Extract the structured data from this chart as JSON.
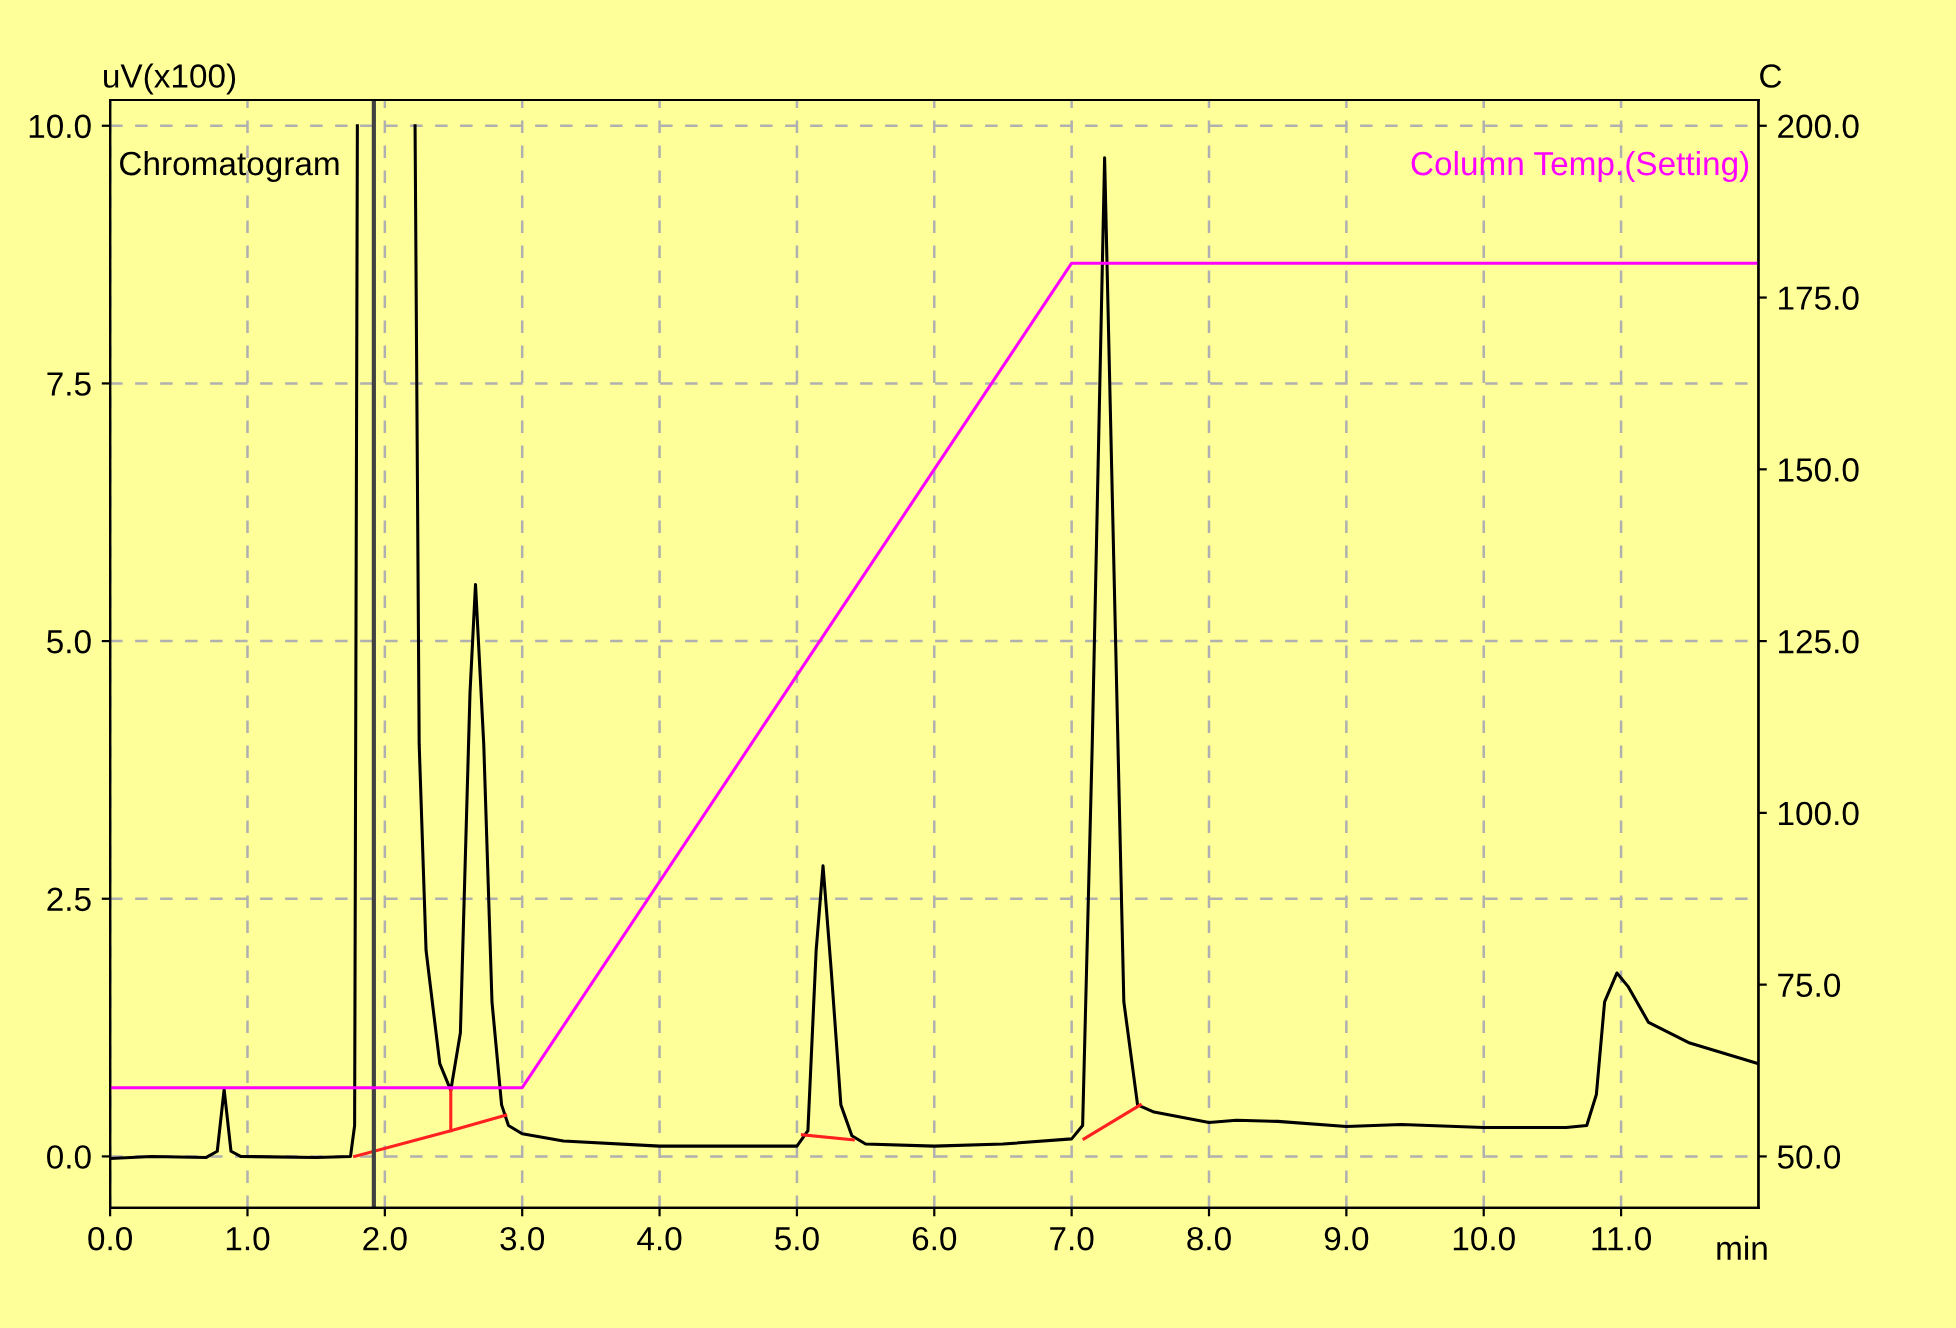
{
  "chart_data": {
    "type": "line",
    "ylabel": "uV(x100)",
    "y2label": "C",
    "xlabel": "min",
    "annotations": [
      "Chromatogram"
    ],
    "xlim": [
      0,
      12.0
    ],
    "ylim": [
      -0.5,
      10.25
    ],
    "y2lim": [
      42.5,
      203.75
    ],
    "xticks": [
      {
        "value": 0,
        "label": "0.0"
      },
      {
        "value": 1,
        "label": "1.0"
      },
      {
        "value": 2,
        "label": "2.0"
      },
      {
        "value": 3,
        "label": "3.0"
      },
      {
        "value": 4,
        "label": "4.0"
      },
      {
        "value": 5,
        "label": "5.0"
      },
      {
        "value": 6,
        "label": "6.0"
      },
      {
        "value": 7,
        "label": "7.0"
      },
      {
        "value": 8,
        "label": "8.0"
      },
      {
        "value": 9,
        "label": "9.0"
      },
      {
        "value": 10,
        "label": "10.0"
      },
      {
        "value": 11,
        "label": "11.0"
      }
    ],
    "yticks": [
      {
        "value": 0,
        "label": "0.0"
      },
      2.5,
      {
        "value": 5,
        "label": "5.0"
      },
      7.5,
      {
        "value": 10,
        "label": "10.0"
      }
    ],
    "y2ticks": [
      {
        "value": 50,
        "label": "50.0"
      },
      {
        "value": 75,
        "label": "75.0"
      },
      {
        "value": 100,
        "label": "100.0"
      },
      {
        "value": 125,
        "label": "125.0"
      },
      {
        "value": 150,
        "label": "150.0"
      },
      {
        "value": 175,
        "label": "175.0"
      },
      {
        "value": 200,
        "label": "200.0"
      }
    ],
    "grid": true,
    "line_style": "solid",
    "ref_lines": [
      {
        "axis": "x",
        "value": 1.92,
        "label": null,
        "color": "#404040"
      }
    ],
    "series": [
      {
        "color": "#000000",
        "x": [
          0,
          0.3,
          0.7,
          0.78,
          0.83,
          0.88,
          0.95,
          1.5,
          1.75,
          1.78,
          1.8,
          2.0,
          2.22,
          2.25,
          2.3,
          2.4,
          2.48,
          2.55,
          2.62,
          2.66,
          2.72,
          2.78,
          2.85,
          2.9,
          3.0,
          3.3,
          4.0,
          5.0,
          5.08,
          5.14,
          5.19,
          5.25,
          5.32,
          5.4,
          5.5,
          6.0,
          6.5,
          7.0,
          7.08,
          7.15,
          7.24,
          7.32,
          7.38,
          7.48,
          7.6,
          8.0,
          8.2,
          8.5,
          9.0,
          9.4,
          9.6,
          10.0,
          10.6,
          10.75,
          10.82,
          10.88,
          10.97,
          11.05,
          11.2,
          11.5,
          12.0
        ],
        "values": [
          -0.02,
          0.0,
          -0.01,
          0.05,
          0.65,
          0.05,
          0.0,
          -0.01,
          0.0,
          0.3,
          10.0,
          null,
          10.0,
          4.0,
          2.0,
          0.9,
          0.64,
          1.2,
          4.5,
          5.55,
          4.0,
          1.5,
          0.5,
          0.3,
          0.22,
          0.15,
          0.1,
          0.1,
          0.25,
          2.0,
          2.82,
          1.8,
          0.5,
          0.2,
          0.12,
          0.1,
          0.12,
          0.17,
          0.3,
          4.0,
          9.69,
          5.0,
          1.5,
          0.5,
          0.43,
          0.33,
          0.35,
          0.34,
          0.29,
          0.31,
          0.3,
          0.28,
          0.28,
          0.3,
          0.6,
          1.5,
          1.78,
          1.65,
          1.3,
          1.1,
          0.9
        ]
      },
      {
        "color": "#ff2020",
        "x": [
          1.78,
          2.48,
          2.88
        ],
        "values": [
          0.0,
          0.25,
          0.4
        ]
      },
      {
        "color": "#ff2020",
        "x": [
          2.48,
          2.48
        ],
        "values": [
          0.64,
          0.25
        ]
      },
      {
        "color": "#ff2020",
        "x": [
          5.04,
          5.41
        ],
        "values": [
          0.21,
          0.16
        ]
      },
      {
        "color": "#ff2020",
        "x": [
          7.09,
          7.5
        ],
        "values": [
          0.17,
          0.5
        ]
      },
      {
        "name": "Column Temp.(Setting)",
        "color": "#ff00ff",
        "axis": "y2",
        "x": [
          0,
          3.0,
          7.0,
          12.0
        ],
        "values": [
          60,
          60,
          180,
          180
        ]
      }
    ]
  }
}
